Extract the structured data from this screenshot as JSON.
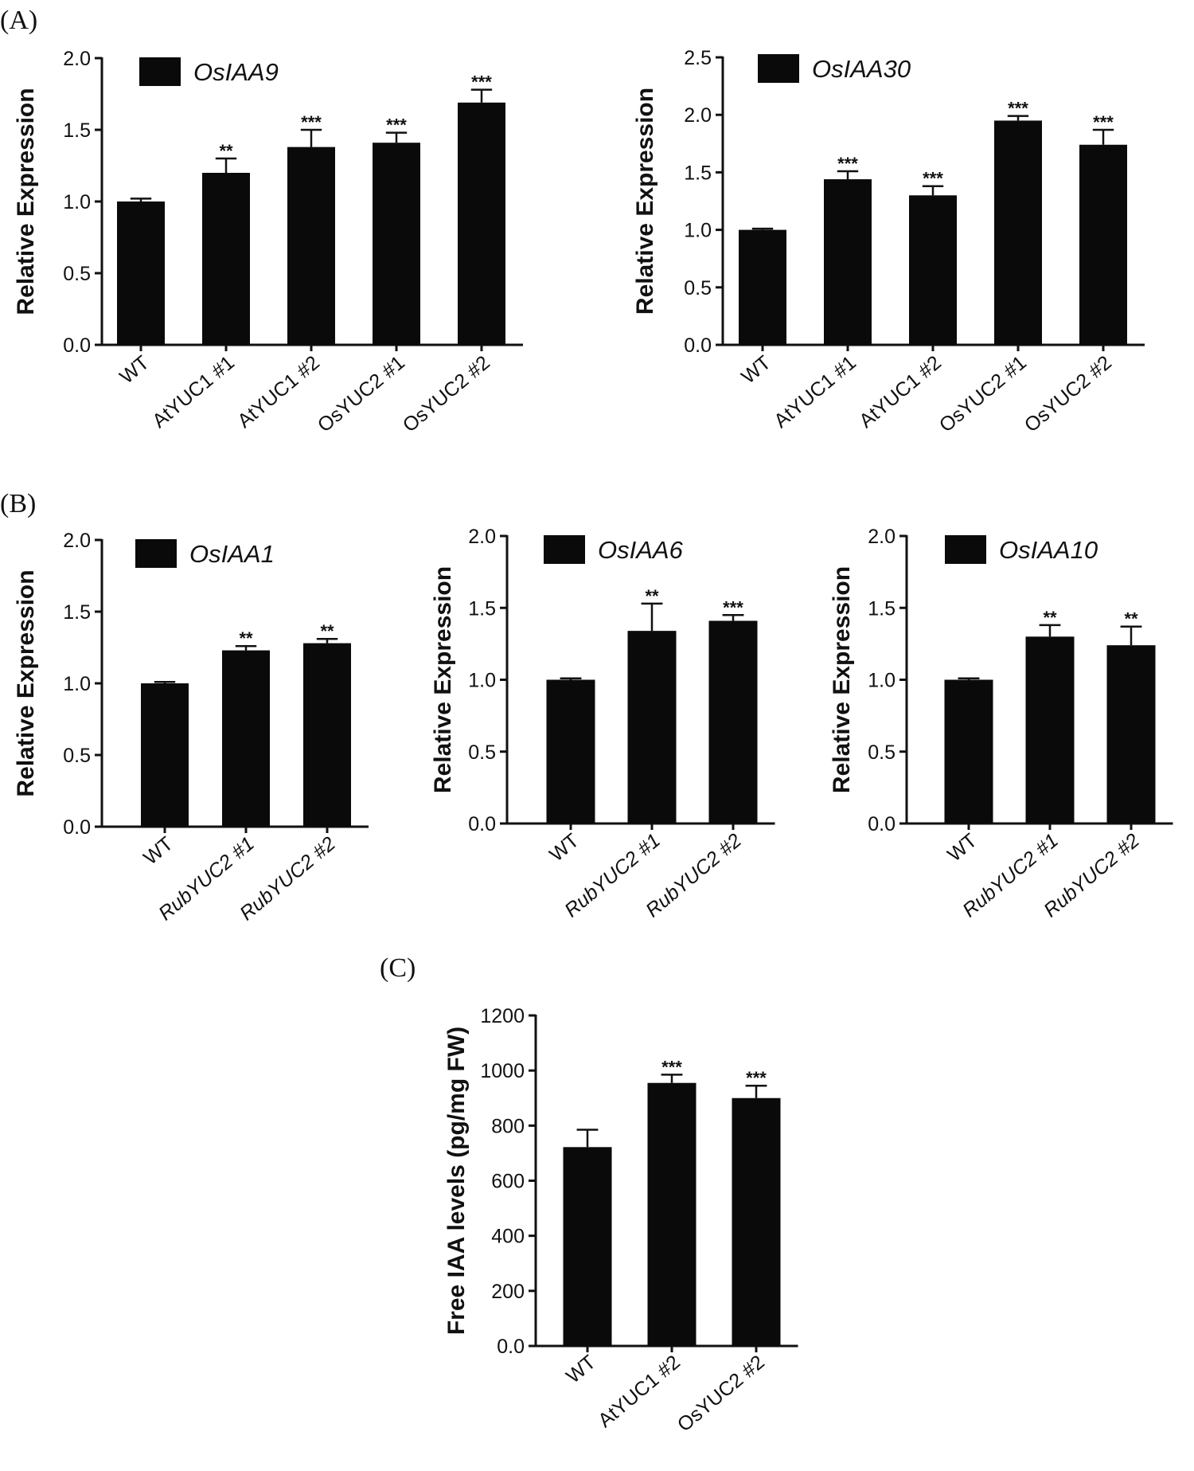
{
  "panels": [
    {
      "label": "(A)"
    },
    {
      "label": "(B)"
    },
    {
      "label": "(C)"
    }
  ],
  "chart_data": [
    {
      "type": "bar",
      "panel": "(A)",
      "legend": "OsIAA9",
      "ylabel": "Relative Expression",
      "ylim": [
        0,
        2.0
      ],
      "yticks": [
        "0.0",
        "0.5",
        "1.0",
        "1.5",
        "2.0"
      ],
      "categories": [
        "WT",
        "AtYUC1 #1",
        "AtYUC1 #2",
        "OsYUC2 #1",
        "OsYUC2 #2"
      ],
      "italic_categories": false,
      "values": [
        1.0,
        1.2,
        1.38,
        1.41,
        1.69
      ],
      "errors": [
        0.02,
        0.1,
        0.12,
        0.07,
        0.09
      ],
      "significance": [
        "",
        "**",
        "***",
        "***",
        "***"
      ]
    },
    {
      "type": "bar",
      "panel": "(A)",
      "legend": "OsIAA30",
      "ylabel": "Relative Expression",
      "ylim": [
        0,
        2.5
      ],
      "yticks": [
        "0.0",
        "0.5",
        "1.0",
        "1.5",
        "2.0",
        "2.5"
      ],
      "categories": [
        "WT",
        "AtYUC1 #1",
        "AtYUC1 #2",
        "OsYUC2 #1",
        "OsYUC2 #2"
      ],
      "italic_categories": false,
      "values": [
        1.0,
        1.44,
        1.3,
        1.95,
        1.74
      ],
      "errors": [
        0.01,
        0.07,
        0.08,
        0.04,
        0.13
      ],
      "significance": [
        "",
        "***",
        "***",
        "***",
        "***"
      ]
    },
    {
      "type": "bar",
      "panel": "(B)",
      "legend": "OsIAA1",
      "ylabel": "Relative Expression",
      "ylim": [
        0,
        2.0
      ],
      "yticks": [
        "0.0",
        "0.5",
        "1.0",
        "1.5",
        "2.0"
      ],
      "categories": [
        "WT",
        "RubYUC2 #1",
        "RubYUC2 #2"
      ],
      "italic_categories": true,
      "values": [
        1.0,
        1.23,
        1.28
      ],
      "errors": [
        0.01,
        0.03,
        0.03
      ],
      "significance": [
        "",
        "**",
        "**"
      ]
    },
    {
      "type": "bar",
      "panel": "(B)",
      "legend": "OsIAA6",
      "ylabel": "Relative Expression",
      "ylim": [
        0,
        2.0
      ],
      "yticks": [
        "0.0",
        "0.5",
        "1.0",
        "1.5",
        "2.0"
      ],
      "categories": [
        "WT",
        "RubYUC2 #1",
        "RubYUC2 #2"
      ],
      "italic_categories": true,
      "values": [
        1.0,
        1.34,
        1.41
      ],
      "errors": [
        0.01,
        0.19,
        0.04
      ],
      "significance": [
        "",
        "**",
        "***"
      ]
    },
    {
      "type": "bar",
      "panel": "(B)",
      "legend": "OsIAA10",
      "ylabel": "Relative Expression",
      "ylim": [
        0,
        2.0
      ],
      "yticks": [
        "0.0",
        "0.5",
        "1.0",
        "1.5",
        "2.0"
      ],
      "categories": [
        "WT",
        "RubYUC2 #1",
        "RubYUC2 #2"
      ],
      "italic_categories": true,
      "values": [
        1.0,
        1.3,
        1.24
      ],
      "errors": [
        0.01,
        0.08,
        0.13
      ],
      "significance": [
        "",
        "**",
        "**"
      ]
    },
    {
      "type": "bar",
      "panel": "(C)",
      "legend": "",
      "ylabel": "Free IAA levels (pg/mg FW)",
      "ylim": [
        0,
        1200
      ],
      "yticks": [
        "0.0",
        "200",
        "400",
        "600",
        "800",
        "1000",
        "1200"
      ],
      "categories": [
        "WT",
        "AtYUC1 #2",
        "OsYUC2 #2"
      ],
      "italic_categories": false,
      "values": [
        722,
        955,
        900
      ],
      "errors": [
        63,
        30,
        45
      ],
      "significance": [
        "",
        "***",
        "***"
      ]
    }
  ]
}
